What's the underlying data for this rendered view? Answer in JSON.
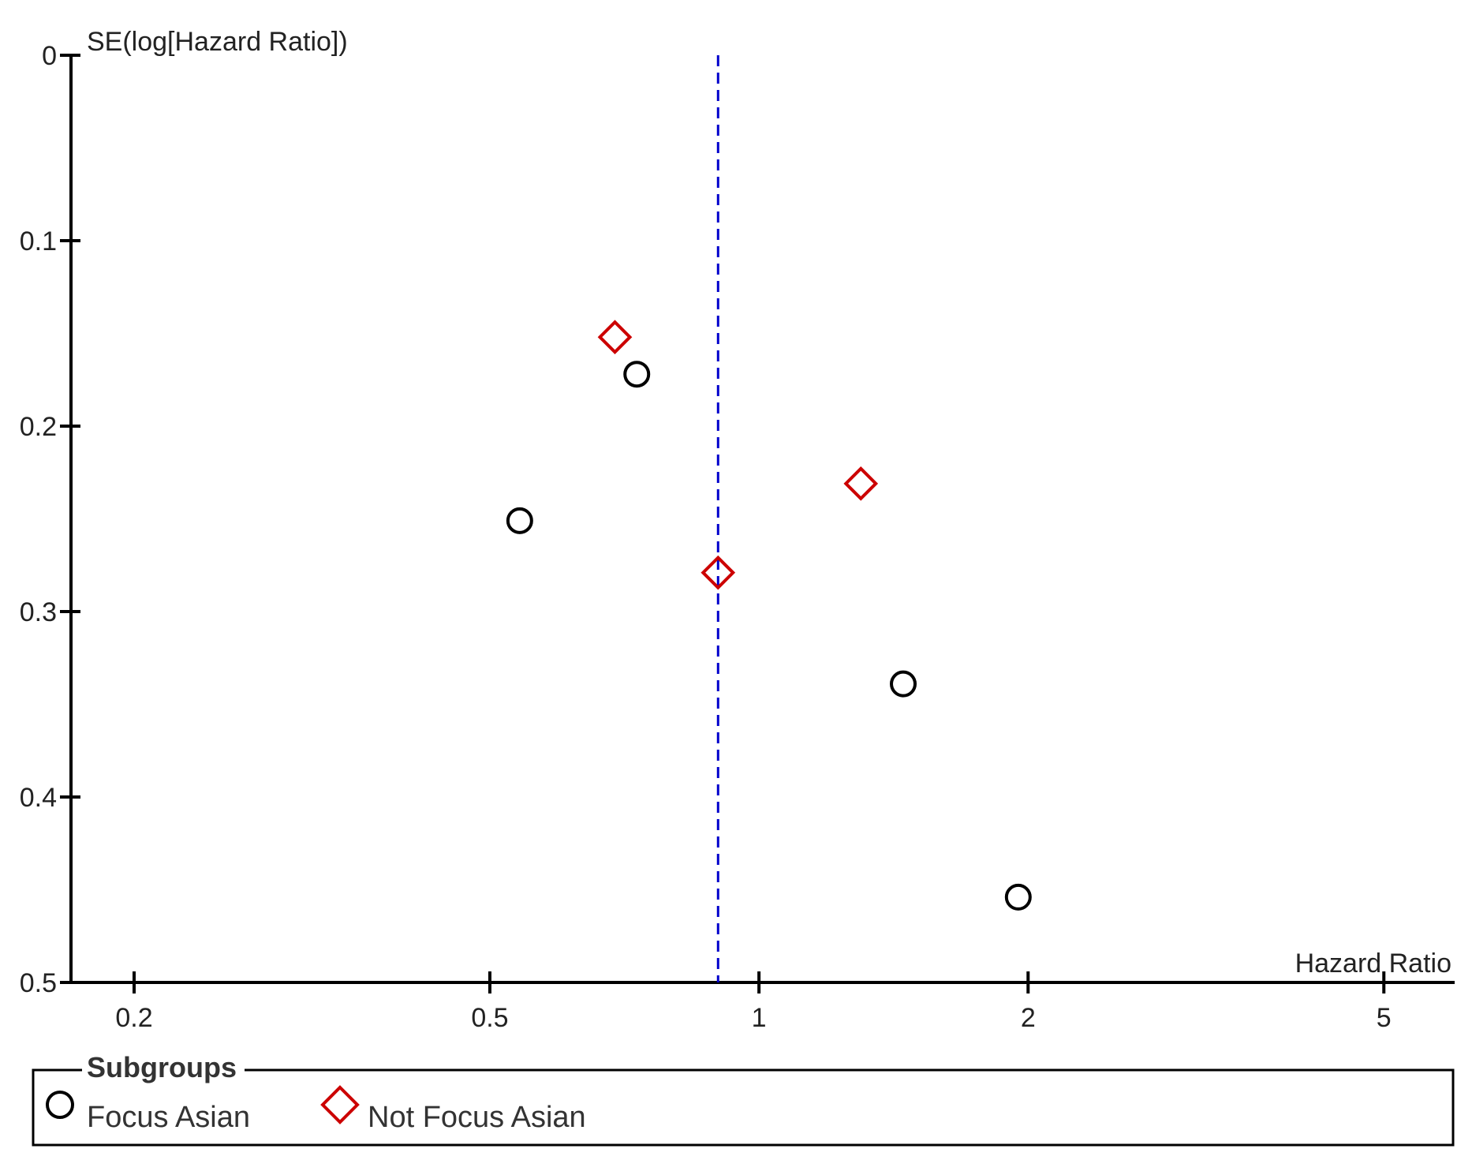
{
  "chart_data": {
    "type": "scatter",
    "subtype": "funnel-plot",
    "xlabel": "Hazard Ratio",
    "ylabel": "SE(log[Hazard Ratio])",
    "x_scale": "log",
    "xlim": [
      0.17,
      6.0
    ],
    "ylim": [
      0,
      0.5
    ],
    "y_inverted": true,
    "x_ticks": [
      0.2,
      0.5,
      1,
      2,
      5
    ],
    "x_tick_labels": [
      "0.2",
      "0.5",
      "1",
      "2",
      "5"
    ],
    "y_ticks": [
      0,
      0.1,
      0.2,
      0.3,
      0.4,
      0.5
    ],
    "y_tick_labels": [
      "0",
      "0.1",
      "0.2",
      "0.3",
      "0.4",
      "0.5"
    ],
    "pooled_estimate": 0.9,
    "pooled_line_color": "#0000cc",
    "series": [
      {
        "name": "Focus Asian",
        "marker": "circle",
        "color": "#000000",
        "points": [
          {
            "x": 0.73,
            "y": 0.172
          },
          {
            "x": 0.54,
            "y": 0.251
          },
          {
            "x": 1.45,
            "y": 0.339
          },
          {
            "x": 1.95,
            "y": 0.454
          }
        ]
      },
      {
        "name": "Not Focus Asian",
        "marker": "diamond",
        "color": "#cc0000",
        "points": [
          {
            "x": 0.69,
            "y": 0.152
          },
          {
            "x": 1.3,
            "y": 0.231
          },
          {
            "x": 0.9,
            "y": 0.279
          }
        ]
      }
    ],
    "legend": {
      "title": "Subgroups",
      "position": "bottom",
      "items": [
        "Focus Asian",
        "Not Focus Asian"
      ]
    }
  }
}
